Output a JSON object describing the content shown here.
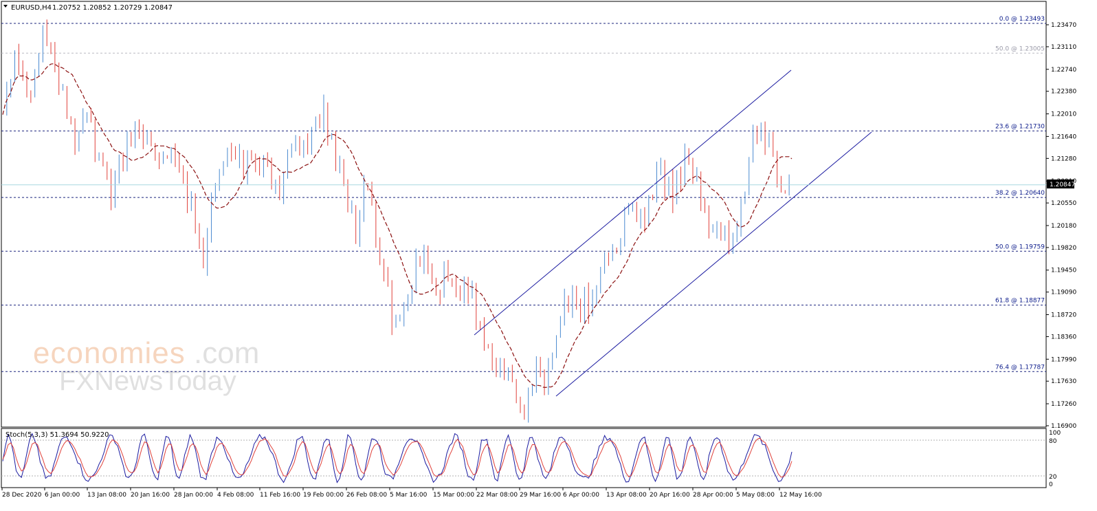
{
  "header": {
    "symbol": "EURUSD,H4",
    "ohlc": "1.20752 1.20852 1.20729 1.20847"
  },
  "current_price": "1.20847",
  "watermark": {
    "line1_a": "economies",
    "line1_b": ".com",
    "line2": "FXNewsToday"
  },
  "stoch": {
    "label": "Stoch(5,3,3) 51.3694 50.9220",
    "levels": [
      "100",
      "80",
      "20",
      "0"
    ]
  },
  "colors": {
    "up_candle": "#4a8ad0",
    "down_candle": "#e0403a",
    "ma": "#8b1010",
    "fib": "#1a237e",
    "channel": "#1a1aa0",
    "stoch_main": "#1a1aa0",
    "stoch_signal": "#e0403a",
    "price_line": "#a8d8e0"
  },
  "chart_data": {
    "type": "candlestick",
    "symbol": "EURUSD",
    "timeframe": "H4",
    "y_ticks": [
      "1.23470",
      "1.23110",
      "1.22740",
      "1.22380",
      "1.22010",
      "1.21640",
      "1.21280",
      "1.20910",
      "1.20550",
      "1.20180",
      "1.19820",
      "1.19450",
      "1.19090",
      "1.18720",
      "1.18360",
      "1.17990",
      "1.17630",
      "1.17260",
      "1.16900"
    ],
    "y_tick_values": [
      1.2347,
      1.2311,
      1.2274,
      1.2238,
      1.2201,
      1.2164,
      1.2128,
      1.2091,
      1.2055,
      1.2018,
      1.1982,
      1.1945,
      1.1909,
      1.1872,
      1.1836,
      1.1799,
      1.1763,
      1.1726,
      1.169
    ],
    "x_ticks": [
      "28 Dec 2020",
      "6 Jan 00:00",
      "13 Jan 08:00",
      "20 Jan 16:00",
      "28 Jan 00:00",
      "4 Feb 08:00",
      "11 Feb 16:00",
      "19 Feb 00:00",
      "26 Feb 08:00",
      "5 Mar 16:00",
      "15 Mar 00:00",
      "22 Mar 08:00",
      "29 Mar 16:00",
      "6 Apr 00:00",
      "13 Apr 08:00",
      "20 Apr 16:00",
      "28 Apr 00:00",
      "5 May 08:00",
      "12 May 16:00"
    ],
    "fibonacci": [
      {
        "label": "0.0 @ 1.23493",
        "level": 1.23493,
        "style": "dark"
      },
      {
        "label": "50.0 @ 1.23005",
        "level": 1.23005,
        "style": "light"
      },
      {
        "label": "23.6 @ 1.21730",
        "level": 1.2173,
        "style": "dark"
      },
      {
        "label": "38.2 @ 1.20640",
        "level": 1.2064,
        "style": "dark"
      },
      {
        "label": "50.0 @ 1.19759",
        "level": 1.19759,
        "style": "dark"
      },
      {
        "label": "61.8 @ 1.18877",
        "level": 1.18877,
        "style": "dark"
      },
      {
        "label": "76.4 @ 1.17787",
        "level": 1.17787,
        "style": "dark"
      }
    ],
    "close_path": [
      [
        0,
        1.22
      ],
      [
        5,
        1.227
      ],
      [
        10,
        1.23
      ],
      [
        15,
        1.226
      ],
      [
        20,
        1.223
      ],
      [
        25,
        1.229
      ],
      [
        30,
        1.233
      ],
      [
        35,
        1.23
      ],
      [
        40,
        1.227
      ],
      [
        45,
        1.223
      ],
      [
        50,
        1.218
      ],
      [
        55,
        1.215
      ],
      [
        60,
        1.219
      ],
      [
        65,
        1.22
      ],
      [
        70,
        1.214
      ],
      [
        75,
        1.212
      ],
      [
        80,
        1.206
      ],
      [
        85,
        1.211
      ],
      [
        90,
        1.214
      ],
      [
        95,
        1.216
      ],
      [
        100,
        1.217
      ],
      [
        105,
        1.216
      ],
      [
        110,
        1.215
      ],
      [
        115,
        1.213
      ],
      [
        120,
        1.212
      ],
      [
        125,
        1.215
      ],
      [
        130,
        1.213
      ],
      [
        135,
        1.21
      ],
      [
        140,
        1.206
      ],
      [
        145,
        1.201
      ],
      [
        150,
        1.196
      ],
      [
        155,
        1.205
      ],
      [
        160,
        1.209
      ],
      [
        165,
        1.213
      ],
      [
        170,
        1.214
      ],
      [
        175,
        1.212
      ],
      [
        180,
        1.211
      ],
      [
        185,
        1.214
      ],
      [
        190,
        1.211
      ],
      [
        195,
        1.212
      ],
      [
        200,
        1.21
      ],
      [
        205,
        1.206
      ],
      [
        210,
        1.21
      ],
      [
        215,
        1.214
      ],
      [
        220,
        1.216
      ],
      [
        225,
        1.215
      ],
      [
        230,
        1.216
      ],
      [
        235,
        1.218
      ],
      [
        240,
        1.222
      ],
      [
        245,
        1.216
      ],
      [
        250,
        1.212
      ],
      [
        255,
        1.208
      ],
      [
        260,
        1.204
      ],
      [
        265,
        1.2
      ],
      [
        270,
        1.209
      ],
      [
        275,
        1.206
      ],
      [
        280,
        1.198
      ],
      [
        285,
        1.194
      ],
      [
        290,
        1.188
      ],
      [
        295,
        1.184
      ],
      [
        300,
        1.188
      ],
      [
        305,
        1.192
      ],
      [
        310,
        1.196
      ],
      [
        315,
        1.197
      ],
      [
        320,
        1.193
      ],
      [
        325,
        1.191
      ],
      [
        330,
        1.195
      ],
      [
        335,
        1.193
      ],
      [
        340,
        1.189
      ],
      [
        345,
        1.192
      ],
      [
        350,
        1.19
      ],
      [
        355,
        1.186
      ],
      [
        360,
        1.184
      ],
      [
        365,
        1.18
      ],
      [
        370,
        1.179
      ],
      [
        375,
        1.178
      ],
      [
        380,
        1.177
      ],
      [
        385,
        1.173
      ],
      [
        390,
        1.172
      ],
      [
        395,
        1.175
      ],
      [
        400,
        1.178
      ],
      [
        405,
        1.176
      ],
      [
        410,
        1.18
      ],
      [
        415,
        1.185
      ],
      [
        420,
        1.188
      ],
      [
        425,
        1.19
      ],
      [
        430,
        1.188
      ],
      [
        435,
        1.19
      ],
      [
        440,
        1.189
      ],
      [
        445,
        1.194
      ],
      [
        450,
        1.197
      ],
      [
        455,
        1.198
      ],
      [
        460,
        1.198
      ],
      [
        465,
        1.203
      ],
      [
        470,
        1.206
      ],
      [
        475,
        1.204
      ],
      [
        480,
        1.202
      ],
      [
        485,
        1.207
      ],
      [
        490,
        1.211
      ],
      [
        495,
        1.209
      ],
      [
        500,
        1.207
      ],
      [
        505,
        1.208
      ],
      [
        510,
        1.213
      ],
      [
        515,
        1.211
      ],
      [
        520,
        1.208
      ],
      [
        525,
        1.203
      ],
      [
        530,
        1.201
      ],
      [
        535,
        1.203
      ],
      [
        540,
        1.201
      ],
      [
        545,
        1.199
      ],
      [
        550,
        1.203
      ],
      [
        555,
        1.207
      ],
      [
        560,
        1.216
      ],
      [
        565,
        1.217
      ],
      [
        570,
        1.216
      ],
      [
        575,
        1.215
      ],
      [
        580,
        1.208
      ],
      [
        585,
        1.207
      ],
      [
        590,
        1.2085
      ]
    ],
    "stoch_range": [
      0,
      100
    ]
  }
}
